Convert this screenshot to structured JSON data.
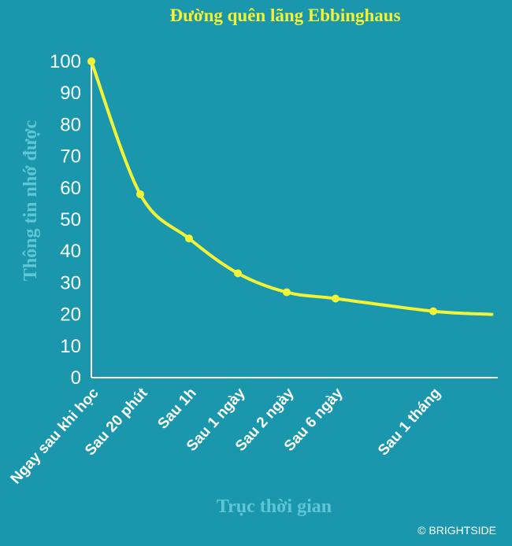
{
  "colors": {
    "background": "#1a96ad",
    "curve": "#f3f335",
    "title": "#f3f335",
    "axis_label": "#5fc6d6",
    "axis": "#ffffff"
  },
  "chart_data": {
    "type": "line",
    "title": "Đường quên lãng Ebbinghaus",
    "xlabel": "Trục thời gian",
    "ylabel": "Thông tin nhớ được",
    "ylim": [
      0,
      100
    ],
    "yticks": [
      0,
      10,
      20,
      30,
      40,
      50,
      60,
      70,
      80,
      90,
      100
    ],
    "categories": [
      "Ngay sau khi học",
      "Sau 20 phút",
      "Sau 1h",
      "Sau 1 ngày",
      "Sau 2 ngày",
      "Sau 6 ngày",
      "Sau 1 tháng"
    ],
    "x": [
      0,
      1,
      2,
      3,
      4,
      5,
      7
    ],
    "values": [
      100,
      58,
      44,
      33,
      27,
      25,
      21
    ],
    "curve_end": {
      "x": 8.2,
      "y": 20
    },
    "grid": false,
    "legend": false
  },
  "credit": "© BRIGHTSIDE"
}
